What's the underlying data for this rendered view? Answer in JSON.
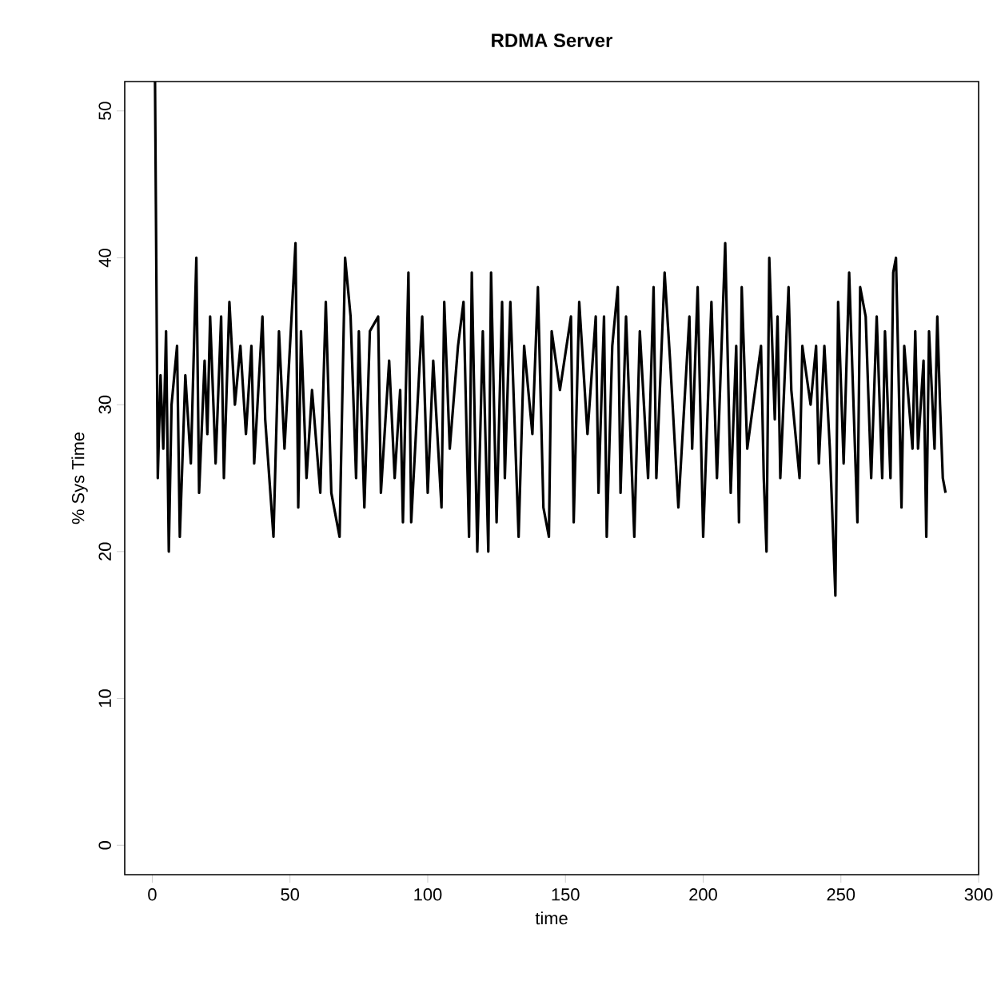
{
  "chart_data": {
    "type": "line",
    "title": "RDMA Server",
    "xlabel": "time",
    "ylabel": "% Sys Time",
    "xlim": [
      -10,
      300
    ],
    "xticks": [
      0,
      50,
      100,
      150,
      200,
      250,
      300
    ],
    "ylim": [
      -2,
      52
    ],
    "yticks": [
      0,
      10,
      20,
      30,
      40,
      50
    ],
    "x": [
      1,
      2,
      3,
      4,
      5,
      6,
      7,
      9,
      10,
      12,
      14,
      16,
      17,
      19,
      20,
      21,
      23,
      25,
      26,
      28,
      30,
      32,
      34,
      36,
      37,
      40,
      41,
      44,
      46,
      48,
      52,
      53,
      54,
      56,
      58,
      61,
      63,
      65,
      68,
      70,
      72,
      74,
      75,
      77,
      79,
      82,
      83,
      86,
      88,
      90,
      91,
      93,
      94,
      98,
      100,
      102,
      105,
      106,
      108,
      111,
      113,
      115,
      116,
      118,
      120,
      122,
      123,
      125,
      127,
      128,
      130,
      133,
      135,
      138,
      140,
      142,
      144,
      145,
      148,
      152,
      153,
      155,
      158,
      161,
      162,
      164,
      165,
      167,
      169,
      170,
      172,
      175,
      177,
      180,
      182,
      183,
      186,
      188,
      191,
      195,
      196,
      198,
      200,
      203,
      205,
      208,
      210,
      212,
      213,
      214,
      216,
      221,
      222,
      223,
      224,
      226,
      227,
      228,
      231,
      232,
      235,
      236,
      239,
      241,
      242,
      244,
      246,
      248,
      249,
      251,
      253,
      256,
      257,
      259,
      261,
      263,
      265,
      266,
      268,
      269,
      270,
      272,
      273,
      276,
      277,
      278,
      280,
      281,
      282,
      284,
      285,
      286,
      287,
      288
    ],
    "values": [
      52,
      25,
      32,
      27,
      35,
      20,
      30,
      34,
      21,
      32,
      26,
      40,
      24,
      33,
      28,
      36,
      26,
      36,
      25,
      37,
      30,
      34,
      28,
      34,
      26,
      36,
      29,
      21,
      35,
      27,
      41,
      23,
      35,
      25,
      31,
      24,
      37,
      24,
      21,
      40,
      36,
      25,
      35,
      23,
      35,
      36,
      24,
      33,
      25,
      31,
      22,
      39,
      22,
      36,
      24,
      33,
      23,
      37,
      27,
      34,
      37,
      21,
      39,
      20,
      35,
      20,
      39,
      22,
      37,
      25,
      37,
      21,
      34,
      28,
      38,
      23,
      21,
      35,
      31,
      36,
      22,
      37,
      28,
      36,
      24,
      36,
      21,
      34,
      38,
      24,
      36,
      21,
      35,
      25,
      38,
      25,
      39,
      33,
      23,
      36,
      27,
      38,
      21,
      37,
      25,
      41,
      24,
      34,
      22,
      38,
      27,
      34,
      25,
      20,
      40,
      29,
      36,
      25,
      38,
      31,
      25,
      34,
      30,
      34,
      26,
      34,
      27,
      17,
      37,
      26,
      39,
      22,
      38,
      36,
      25,
      36,
      25,
      35,
      25,
      39,
      40,
      23,
      34,
      27,
      35,
      27,
      33,
      21,
      35,
      27,
      36,
      30,
      25,
      24
    ],
    "color": "#000000"
  }
}
